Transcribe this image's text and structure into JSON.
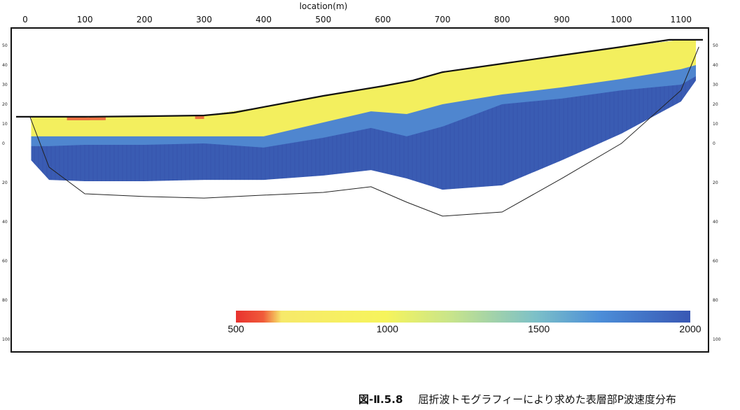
{
  "caption": {
    "figure_number": "図-Ⅱ.5.8",
    "text": "屈折波トモグラフィーにより求めた表層部P波速度分布"
  },
  "chart_data": {
    "type": "heatmap",
    "title": "",
    "xlabel": "location(m)",
    "ylabel": "",
    "xlim": [
      0,
      1130
    ],
    "x_ticks": [
      0,
      100,
      200,
      300,
      400,
      500,
      600,
      700,
      800,
      900,
      1000,
      1100
    ],
    "ylim": [
      -100,
      60
    ],
    "depth_ticks_left": [
      50,
      40,
      30,
      20,
      10,
      0,
      -20,
      -40,
      -60,
      -80,
      -100
    ],
    "depth_ticks_right": [
      50,
      40,
      30,
      20,
      10,
      0,
      -20,
      -40,
      -60,
      -80,
      -100
    ],
    "depth_tick_labels_left": [
      "50",
      "40",
      "30",
      "20",
      "10",
      "0",
      "20",
      "40",
      "60",
      "80",
      "100"
    ],
    "depth_tick_labels_right": [
      "50",
      "40",
      "30",
      "20",
      "10",
      "0",
      "20",
      "40",
      "60",
      "80",
      "100"
    ],
    "grid": false,
    "colorbar": {
      "min": 500,
      "max": 2000,
      "ticks": [
        500,
        1000,
        1500,
        2000
      ],
      "tick_labels": [
        "500",
        "1000",
        "1500",
        "2000"
      ],
      "colors": [
        "#e8322f",
        "#f3f27a",
        "#f6f45c",
        "#8fd0b8",
        "#4c8ed8",
        "#3958b4"
      ],
      "position": "bottom"
    },
    "surface": {
      "x": [
        0,
        100,
        200,
        300,
        350,
        400,
        500,
        600,
        650,
        700,
        800,
        900,
        1000,
        1080,
        1130
      ],
      "elevation": [
        13.6,
        13.6,
        13.9,
        14.3,
        15.7,
        18.6,
        24.3,
        29.3,
        32.1,
        36.4,
        40.7,
        45.0,
        49.3,
        52.9,
        52.9
      ]
    },
    "velocity_layers": {
      "x": [
        10,
        40,
        100,
        200,
        300,
        400,
        500,
        580,
        640,
        700,
        800,
        900,
        1000,
        1100,
        1125
      ],
      "bottom_1000": [
        3.6,
        3.6,
        3.6,
        3.6,
        3.6,
        3.6,
        10.7,
        16.4,
        15.0,
        20.0,
        25.0,
        28.6,
        32.9,
        37.9,
        40.0
      ],
      "bottom_1500": [
        -1.4,
        -1.4,
        -0.7,
        -0.7,
        0.0,
        -2.1,
        2.9,
        7.9,
        3.6,
        8.6,
        20.0,
        22.9,
        27.1,
        30.0,
        34.3
      ],
      "model_bottom": [
        -8.6,
        -18.6,
        -19.3,
        -19.3,
        -18.6,
        -18.6,
        -16.4,
        -13.6,
        -17.9,
        -23.6,
        -21.4,
        -8.6,
        5.0,
        21.4,
        32.1
      ]
    },
    "ray_coverage_bottom": {
      "x": [
        8,
        40,
        100,
        200,
        300,
        400,
        500,
        580,
        640,
        700,
        800,
        900,
        1000,
        1100,
        1130
      ],
      "elevation": [
        13.6,
        -12.1,
        -25.7,
        -27.1,
        -27.9,
        -26.4,
        -25.0,
        -22.1,
        -30.0,
        -37.1,
        -35.0,
        -17.9,
        0.0,
        27.1,
        49.3
      ]
    }
  }
}
